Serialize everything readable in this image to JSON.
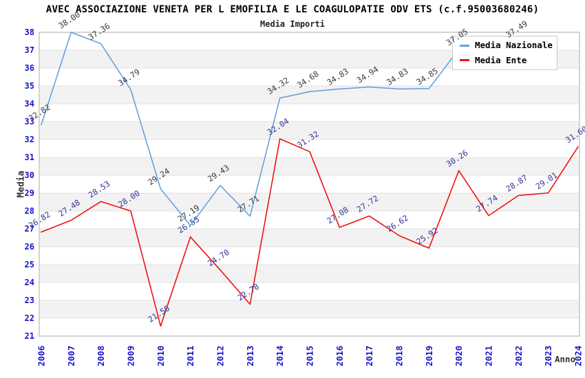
{
  "chart": {
    "title": "AVEC ASSOCIAZIONE VENETA PER L EMOFILIA E LE COAGULOPATIE ODV ETS (c.f.95003680246)",
    "subtitle": "Media Importi"
  },
  "legend": {
    "items": [
      {
        "label": "Media Nazionale",
        "color": "#66a1df"
      },
      {
        "label": "Media Ente",
        "color": "#ee1111"
      }
    ]
  },
  "chart_data": {
    "type": "line",
    "x": [
      2006,
      2007,
      2008,
      2009,
      2010,
      2011,
      2012,
      2013,
      2014,
      2015,
      2016,
      2017,
      2018,
      2019,
      2020,
      2021,
      2022,
      2023,
      2024
    ],
    "series": [
      {
        "name": "Media Nazionale",
        "color": "#66a1df",
        "label_color": "#3a3a3a",
        "values": [
          32.82,
          38.0,
          37.36,
          34.79,
          29.24,
          27.19,
          29.43,
          27.71,
          34.32,
          34.68,
          34.83,
          34.94,
          34.83,
          34.85,
          37.05,
          null,
          37.49,
          null,
          null
        ]
      },
      {
        "name": "Media Ente",
        "color": "#ee1111",
        "label_color": "#333399",
        "values": [
          26.82,
          27.48,
          28.53,
          28.0,
          21.56,
          26.55,
          24.7,
          22.78,
          32.04,
          31.32,
          27.08,
          27.72,
          26.62,
          25.92,
          30.26,
          27.74,
          28.87,
          29.01,
          31.6
        ]
      }
    ],
    "xlabel": "Anno",
    "ylabel": "Media",
    "ylim": [
      21,
      38
    ],
    "y_tick_step": 1,
    "grid": "horizontal",
    "band_fill": "#f2f2f2",
    "gridline_color": "#e3e3e3",
    "border_color": "#aaaaaa",
    "tick_label_color": "#1414cc",
    "legend_position": "top-right"
  }
}
